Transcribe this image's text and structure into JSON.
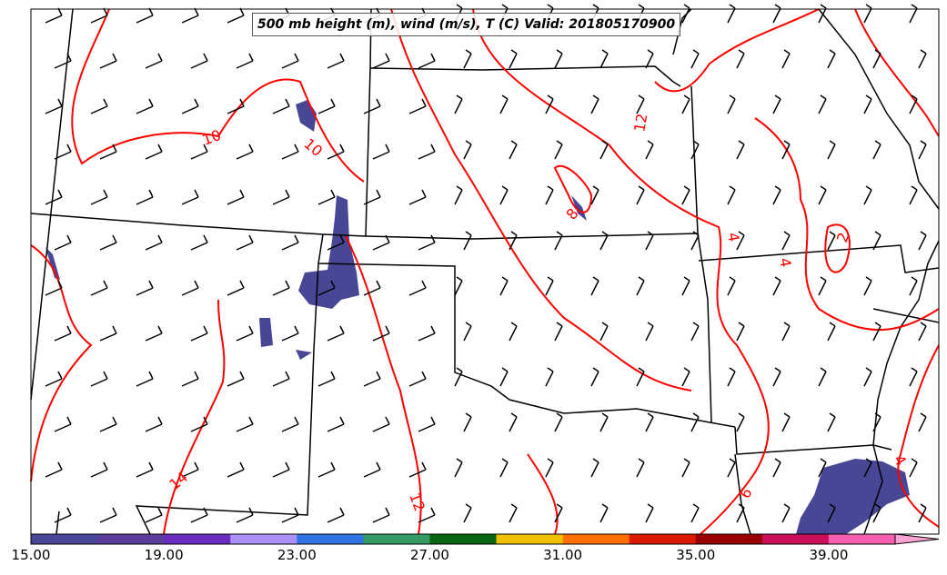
{
  "title": "500 mb height (m), wind (m/s), T (C) Valid: 201805170900",
  "contour_labels": [
    {
      "text": "10",
      "x_at": "Wyoming/Colorado"
    },
    {
      "text": "10",
      "x_at": "Colorado Front Range"
    },
    {
      "text": "12",
      "x_at": "Nebraska"
    },
    {
      "text": "8",
      "x_at": "Kansas"
    },
    {
      "text": "4",
      "x_at": "Missouri"
    },
    {
      "text": "4",
      "x_at": "Missouri"
    },
    {
      "text": "2",
      "x_at": "Missouri east"
    },
    {
      "text": "14",
      "x_at": "New Mexico"
    },
    {
      "text": "12",
      "x_at": "Texas"
    },
    {
      "text": "6",
      "x_at": "Louisiana"
    },
    {
      "text": "4",
      "x_at": "Mississippi"
    }
  ],
  "colorbar": {
    "ticks": [
      "15.00",
      "19.00",
      "23.00",
      "27.00",
      "31.00",
      "35.00",
      "39.00"
    ],
    "min": 15,
    "max": 41,
    "step": 2,
    "colors": [
      "#474796",
      "#5a3d9c",
      "#6a2cbf",
      "#aa90f7",
      "#3273e3",
      "#339a63",
      "#066412",
      "#f0bf00",
      "#ff7000",
      "#dc1a00",
      "#990000",
      "#cc0e58",
      "#f65faf"
    ],
    "extend_color": "#f9a3d2"
  },
  "colors": {
    "contour": "#ff0000",
    "shading": "#474796",
    "border": "#000000"
  }
}
